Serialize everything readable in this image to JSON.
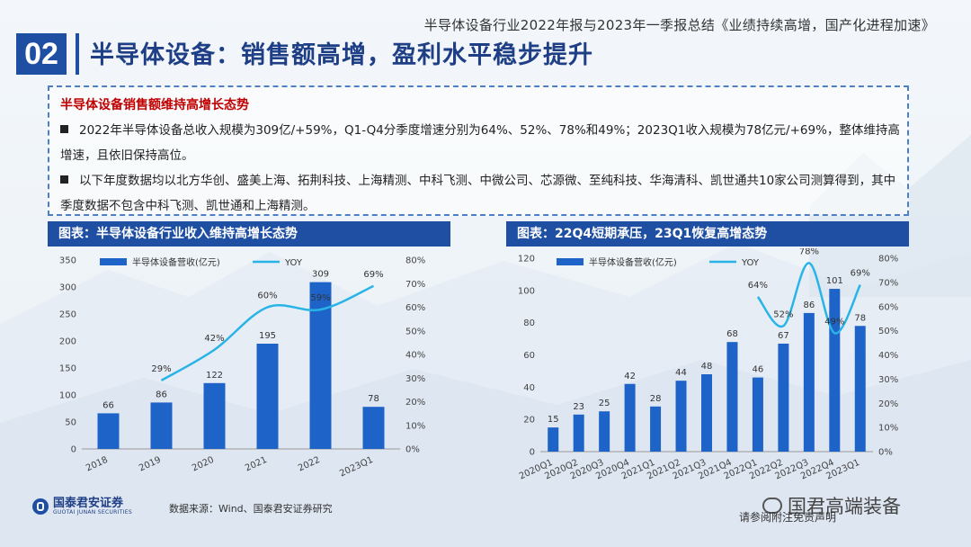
{
  "header": {
    "report_title": "半导体设备行业2022年报与2023年一季报总结《业绩持续高增，国产化进程加速》",
    "section_number": "02",
    "heading": "半导体设备：销售额高增，盈利水平稳步提升"
  },
  "summary": {
    "title": "半导体设备销售额维持高增长态势",
    "bullets": [
      "2022年半导体设备总收入规模为309亿/+59%，Q1-Q4分季度增速分别为64%、52%、78%和49%；2023Q1收入规模为78亿元/+69%，整体维持高增速，且依旧保持高位。",
      "以下年度数据均以北方华创、盛美上海、拓荆科技、上海精测、中科飞测、中微公司、芯源微、至纯科技、华海清科、凯世通共10家公司测算得到，其中季度数据不包含中科飞测、凯世通和上海精测。"
    ]
  },
  "chart_data": [
    {
      "type": "bar",
      "title": "图表：半导体设备行业收入维持高增长态势",
      "categories": [
        "2018",
        "2019",
        "2020",
        "2021",
        "2022",
        "2023Q1"
      ],
      "series": [
        {
          "name": "半导体设备营收(亿元)",
          "type": "bar",
          "axis": "left",
          "values": [
            66,
            86,
            122,
            195,
            309,
            78
          ],
          "labels": [
            "66",
            "86",
            "122",
            "195",
            "309",
            "78"
          ]
        },
        {
          "name": "YOY",
          "type": "line",
          "axis": "right",
          "values": [
            null,
            29,
            42,
            60,
            59,
            69
          ],
          "labels": [
            "",
            "29%",
            "42%",
            "60%",
            "59%",
            "69%"
          ]
        }
      ],
      "y_left": {
        "min": 0,
        "max": 350,
        "ticks": [
          "0",
          "50",
          "100",
          "150",
          "200",
          "250",
          "300",
          "350"
        ]
      },
      "y_right": {
        "min": 0,
        "max": 80,
        "ticks": [
          "0%",
          "10%",
          "20%",
          "30%",
          "40%",
          "50%",
          "60%",
          "70%",
          "80%"
        ]
      },
      "colors": {
        "bar": "#1e64c8",
        "line": "#28b4e6"
      }
    },
    {
      "type": "bar",
      "title": "图表：22Q4短期承压，23Q1恢复高增态势",
      "categories": [
        "2020Q1",
        "2020Q2",
        "2020Q3",
        "2020Q4",
        "2021Q1",
        "2021Q2",
        "2021Q3",
        "2021Q4",
        "2022Q1",
        "2022Q2",
        "2022Q3",
        "2022Q4",
        "2023Q1"
      ],
      "series": [
        {
          "name": "半导体设备营收(亿元)",
          "type": "bar",
          "axis": "left",
          "values": [
            15,
            23,
            25,
            42,
            28,
            44,
            48,
            68,
            46,
            67,
            86,
            101,
            78
          ],
          "labels": [
            "15",
            "23",
            "25",
            "42",
            "28",
            "44",
            "48",
            "68",
            "46",
            "67",
            "86",
            "101",
            "78"
          ]
        },
        {
          "name": "YOY",
          "type": "line",
          "axis": "right",
          "values": [
            null,
            null,
            null,
            null,
            null,
            null,
            null,
            null,
            64,
            52,
            78,
            49,
            69
          ],
          "labels": [
            "",
            "",
            "",
            "",
            "",
            "",
            "",
            "",
            "64%",
            "52%",
            "78%",
            "49%",
            "69%"
          ]
        }
      ],
      "y_left": {
        "min": 0,
        "max": 120,
        "ticks": [
          "0",
          "20",
          "40",
          "60",
          "80",
          "100",
          "120"
        ]
      },
      "y_right": {
        "min": 0,
        "max": 80,
        "ticks": [
          "0%",
          "10%",
          "20%",
          "30%",
          "40%",
          "50%",
          "60%",
          "70%",
          "80%"
        ]
      },
      "colors": {
        "bar": "#1e64c8",
        "line": "#28b4e6"
      }
    }
  ],
  "footer": {
    "logo_text": "国泰君安证券",
    "logo_sub": "GUOTAI JUNAN SECURITIES",
    "source": "数据来源：Wind、国泰君安证券研究",
    "watermark": "国君高端装备",
    "please": "请参阅附注免责声明"
  }
}
